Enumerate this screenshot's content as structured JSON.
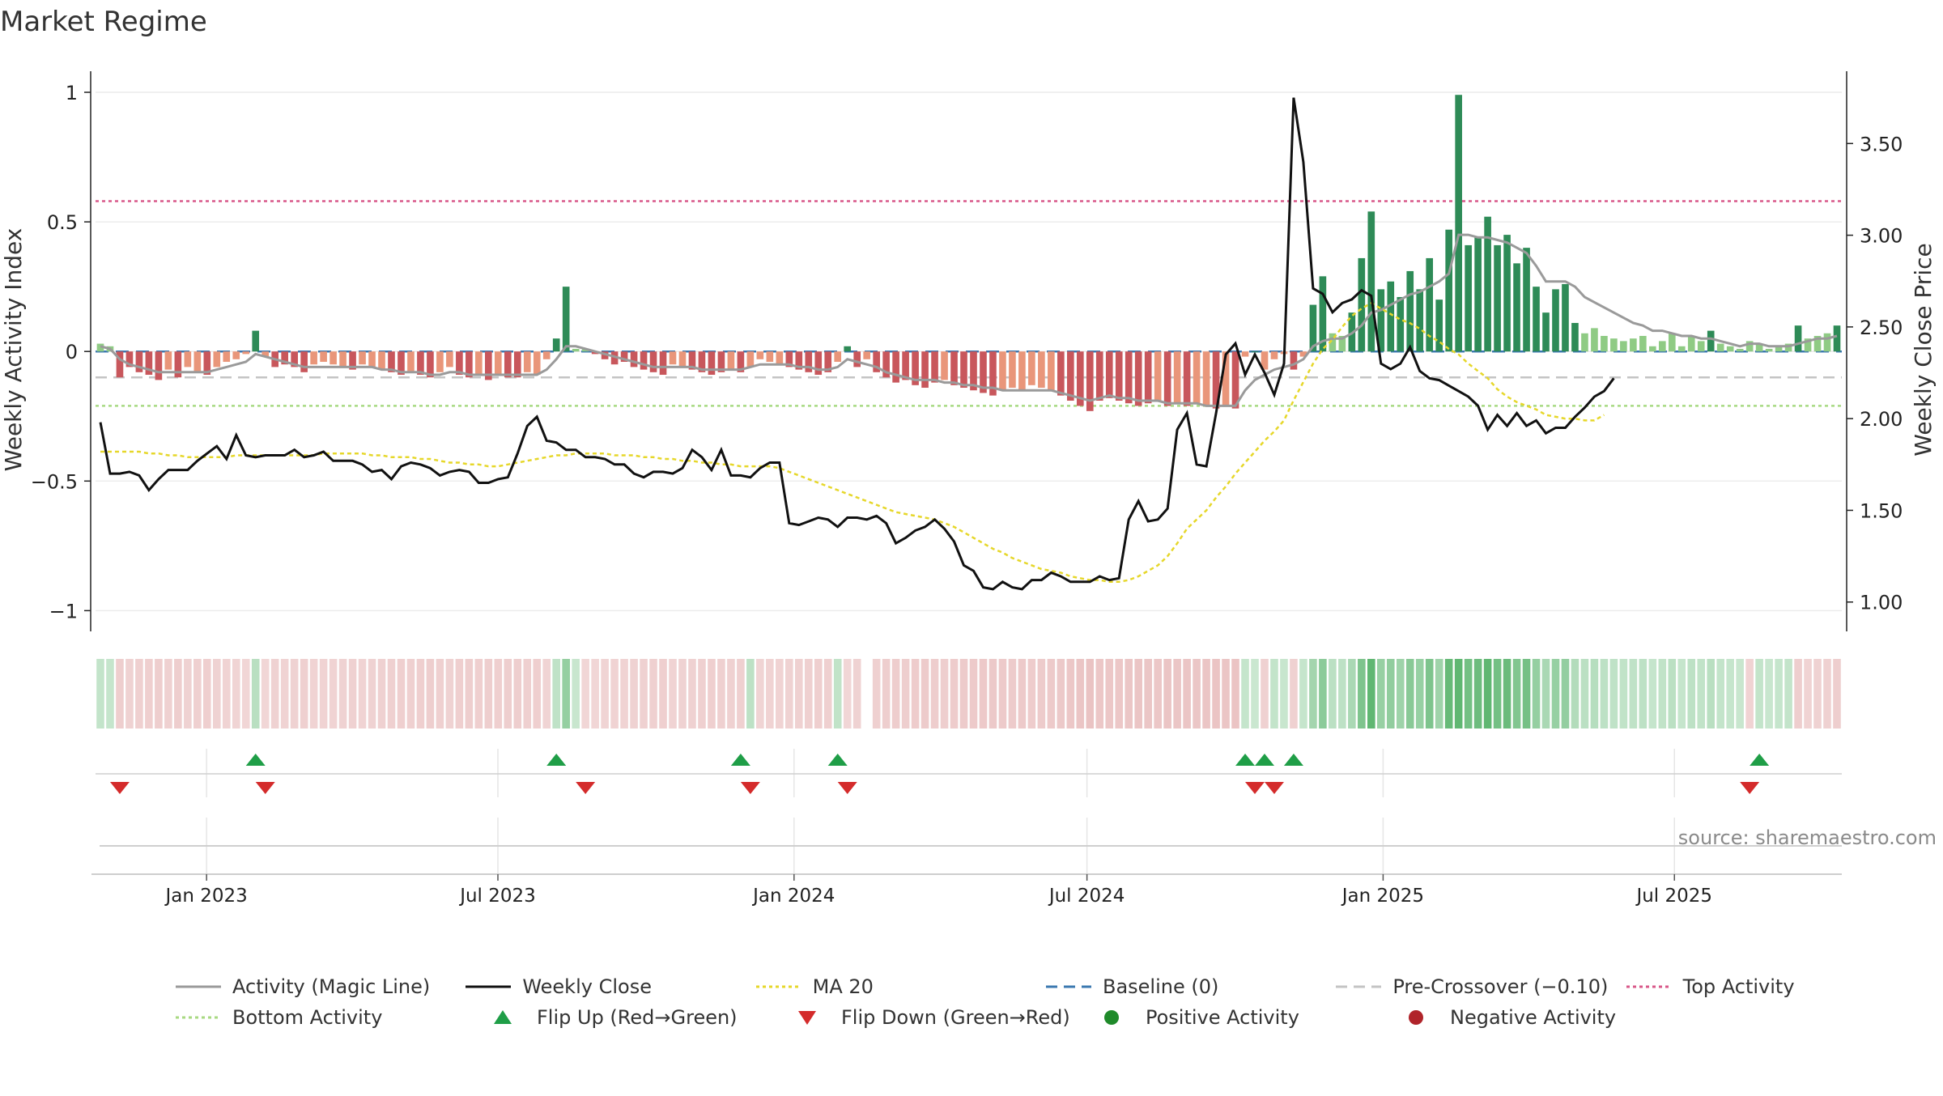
{
  "title": "Market Regime",
  "source": "source: sharemaestro.com",
  "colors": {
    "positive_dark": "#2e8b57",
    "positive_light": "#8fcb84",
    "negative_dark": "#c8575c",
    "negative_light": "#e9967a",
    "magic_line": "#9a9a9a",
    "close": "#111111",
    "ma20": "#e6d72a",
    "baseline": "#3b78b0",
    "pre_crossover": "#c4c4c4",
    "top_activity": "#d9588a",
    "bottom_activity": "#a8d982",
    "flip_up": "#1f9e47",
    "flip_down": "#d42b2b",
    "positive_dot": "#1f8a2a",
    "negative_dot": "#b0242a"
  },
  "legend": [
    {
      "label": "Activity (Magic Line)",
      "icon": "line-solid-gray"
    },
    {
      "label": "Weekly Close",
      "icon": "line-solid-black"
    },
    {
      "label": "MA 20",
      "icon": "line-dotted-yellow"
    },
    {
      "label": "Baseline (0)",
      "icon": "line-dashed-blue"
    },
    {
      "label": "Pre-Crossover (−0.10)",
      "icon": "line-dashed-gray"
    },
    {
      "label": "Top Activity",
      "icon": "line-dotted-pink"
    },
    {
      "label": "Bottom Activity",
      "icon": "line-dotted-lightgreen"
    },
    {
      "label": "Flip Up (Red→Green)",
      "icon": "triangle-up-green"
    },
    {
      "label": "Flip Down (Green→Red)",
      "icon": "triangle-down-red"
    },
    {
      "label": "Positive Activity",
      "icon": "dot-green"
    },
    {
      "label": "Negative Activity",
      "icon": "dot-red"
    }
  ],
  "chart_data": {
    "type": "bar",
    "ylabel": "Weekly Activity Index",
    "ylabel_right": "Weekly Close Price",
    "ylim": [
      -1.08,
      1.05
    ],
    "ylim_right": [
      0.84,
      3.85
    ],
    "yticks": [
      1,
      0.5,
      0,
      -0.5,
      -1
    ],
    "ytick_labels": [
      "1",
      "0.5",
      "0",
      "−0.5",
      "−1"
    ],
    "yticks_right": [
      3.5,
      3.0,
      2.5,
      2.0,
      1.5,
      1.0
    ],
    "ytick_labels_right": [
      "3.50",
      "3.00",
      "2.50",
      "2.00",
      "1.50",
      "1.00"
    ],
    "x_start": "2022-10-24",
    "x_end": "2025-10-13",
    "xticks": [
      "2023-01-01",
      "2023-07-01",
      "2024-01-01",
      "2024-07-01",
      "2025-01-01",
      "2025-07-01"
    ],
    "xtick_labels": [
      "Jan 2023",
      "Jul 2023",
      "Jan 2024",
      "Jul 2024",
      "Jan 2025",
      "Jul 2025"
    ],
    "baseline": 0,
    "pre_crossover": -0.1,
    "top_activity": 0.58,
    "bottom_activity": -0.21,
    "grid": true,
    "legend_position": "bottom",
    "activity": [
      0.03,
      0.02,
      -0.1,
      -0.06,
      -0.08,
      -0.09,
      -0.11,
      -0.07,
      -0.1,
      -0.06,
      -0.08,
      -0.09,
      -0.06,
      -0.04,
      -0.03,
      -0.01,
      0.08,
      -0.02,
      -0.06,
      -0.05,
      -0.06,
      -0.08,
      -0.05,
      -0.04,
      -0.05,
      -0.06,
      -0.07,
      -0.05,
      -0.06,
      -0.07,
      -0.08,
      -0.09,
      -0.08,
      -0.09,
      -0.1,
      -0.08,
      -0.06,
      -0.09,
      -0.1,
      -0.09,
      -0.11,
      -0.09,
      -0.1,
      -0.1,
      -0.08,
      -0.09,
      -0.03,
      0.05,
      0.25,
      0.01,
      0.01,
      -0.01,
      -0.03,
      -0.05,
      -0.04,
      -0.06,
      -0.07,
      -0.08,
      -0.09,
      -0.05,
      -0.06,
      -0.07,
      -0.08,
      -0.09,
      -0.08,
      -0.07,
      -0.08,
      -0.06,
      -0.03,
      -0.04,
      -0.05,
      -0.06,
      -0.07,
      -0.08,
      -0.09,
      -0.08,
      -0.04,
      0.02,
      -0.06,
      -0.03,
      -0.08,
      -0.1,
      -0.12,
      -0.11,
      -0.13,
      -0.14,
      -0.12,
      -0.11,
      -0.13,
      -0.14,
      -0.15,
      -0.16,
      -0.17,
      -0.15,
      -0.14,
      -0.15,
      -0.13,
      -0.14,
      -0.15,
      -0.17,
      -0.19,
      -0.21,
      -0.23,
      -0.19,
      -0.18,
      -0.19,
      -0.2,
      -0.21,
      -0.2,
      -0.19,
      -0.21,
      -0.2,
      -0.21,
      -0.2,
      -0.21,
      -0.22,
      -0.21,
      -0.22,
      -0.02,
      0.0,
      -0.07,
      -0.03,
      -0.01,
      -0.07,
      -0.02,
      0.18,
      0.29,
      0.07,
      0.06,
      0.15,
      0.36,
      0.54,
      0.24,
      0.27,
      0.21,
      0.31,
      0.24,
      0.36,
      0.2,
      0.47,
      0.99,
      0.41,
      0.44,
      0.52,
      0.41,
      0.45,
      0.34,
      0.4,
      0.25,
      0.15,
      0.24,
      0.26,
      0.11,
      0.07,
      0.09,
      0.06,
      0.05,
      0.04,
      0.05,
      0.06,
      0.02,
      0.04,
      0.07,
      0.02,
      0.06,
      0.04,
      0.08,
      0.03,
      0.02,
      0.01,
      0.04,
      0.03,
      0.01,
      0.02,
      0.03,
      0.1,
      0.05,
      0.06,
      0.07,
      0.1
    ],
    "magic_line": [
      0.02,
      0.01,
      -0.03,
      -0.05,
      -0.06,
      -0.07,
      -0.08,
      -0.08,
      -0.08,
      -0.08,
      -0.08,
      -0.08,
      -0.07,
      -0.06,
      -0.05,
      -0.04,
      -0.01,
      -0.02,
      -0.03,
      -0.04,
      -0.05,
      -0.06,
      -0.06,
      -0.06,
      -0.06,
      -0.06,
      -0.06,
      -0.06,
      -0.06,
      -0.07,
      -0.07,
      -0.08,
      -0.08,
      -0.08,
      -0.09,
      -0.09,
      -0.08,
      -0.08,
      -0.09,
      -0.09,
      -0.09,
      -0.09,
      -0.09,
      -0.09,
      -0.09,
      -0.09,
      -0.07,
      -0.03,
      0.02,
      0.02,
      0.01,
      0.0,
      -0.01,
      -0.02,
      -0.03,
      -0.04,
      -0.05,
      -0.06,
      -0.06,
      -0.06,
      -0.06,
      -0.06,
      -0.07,
      -0.07,
      -0.07,
      -0.07,
      -0.07,
      -0.06,
      -0.05,
      -0.05,
      -0.05,
      -0.05,
      -0.06,
      -0.06,
      -0.07,
      -0.07,
      -0.06,
      -0.03,
      -0.04,
      -0.05,
      -0.06,
      -0.08,
      -0.09,
      -0.1,
      -0.11,
      -0.11,
      -0.11,
      -0.12,
      -0.12,
      -0.13,
      -0.13,
      -0.14,
      -0.14,
      -0.15,
      -0.15,
      -0.15,
      -0.15,
      -0.15,
      -0.15,
      -0.16,
      -0.17,
      -0.18,
      -0.19,
      -0.18,
      -0.17,
      -0.18,
      -0.18,
      -0.19,
      -0.19,
      -0.19,
      -0.2,
      -0.2,
      -0.2,
      -0.2,
      -0.21,
      -0.21,
      -0.21,
      -0.21,
      -0.15,
      -0.11,
      -0.09,
      -0.07,
      -0.06,
      -0.05,
      -0.03,
      0.02,
      0.04,
      0.05,
      0.05,
      0.07,
      0.1,
      0.15,
      0.16,
      0.18,
      0.2,
      0.22,
      0.23,
      0.25,
      0.27,
      0.3,
      0.45,
      0.45,
      0.44,
      0.44,
      0.43,
      0.42,
      0.4,
      0.38,
      0.33,
      0.27,
      0.27,
      0.27,
      0.25,
      0.21,
      0.19,
      0.17,
      0.15,
      0.13,
      0.11,
      0.1,
      0.08,
      0.08,
      0.07,
      0.06,
      0.06,
      0.05,
      0.05,
      0.04,
      0.03,
      0.02,
      0.03,
      0.03,
      0.02,
      0.02,
      0.02,
      0.03,
      0.04,
      0.05,
      0.05,
      0.06
    ],
    "weekly_close": [
      1.98,
      1.7,
      1.7,
      1.71,
      1.69,
      1.61,
      1.67,
      1.72,
      1.72,
      1.72,
      1.77,
      1.81,
      1.85,
      1.78,
      1.91,
      1.8,
      1.79,
      1.8,
      1.8,
      1.8,
      1.83,
      1.79,
      1.8,
      1.82,
      1.77,
      1.77,
      1.77,
      1.75,
      1.71,
      1.72,
      1.67,
      1.74,
      1.76,
      1.75,
      1.73,
      1.69,
      1.71,
      1.72,
      1.71,
      1.65,
      1.65,
      1.67,
      1.68,
      1.81,
      1.96,
      2.01,
      1.88,
      1.87,
      1.83,
      1.83,
      1.79,
      1.79,
      1.78,
      1.75,
      1.75,
      1.7,
      1.68,
      1.71,
      1.71,
      1.7,
      1.73,
      1.83,
      1.79,
      1.72,
      1.83,
      1.69,
      1.69,
      1.68,
      1.73,
      1.76,
      1.76,
      1.43,
      1.42,
      1.44,
      1.46,
      1.45,
      1.41,
      1.46,
      1.46,
      1.45,
      1.47,
      1.43,
      1.32,
      1.35,
      1.39,
      1.41,
      1.45,
      1.4,
      1.33,
      1.2,
      1.17,
      1.08,
      1.07,
      1.11,
      1.08,
      1.07,
      1.12,
      1.12,
      1.16,
      1.14,
      1.11,
      1.11,
      1.11,
      1.14,
      1.12,
      1.13,
      1.45,
      1.55,
      1.44,
      1.45,
      1.51,
      1.94,
      2.03,
      1.75,
      1.74,
      2.03,
      2.35,
      2.41,
      2.24,
      2.35,
      2.25,
      2.13,
      2.3,
      3.75,
      3.4,
      2.71,
      2.68,
      2.58,
      2.63,
      2.65,
      2.7,
      2.67,
      2.3,
      2.27,
      2.3,
      2.39,
      2.26,
      2.22,
      2.21,
      2.18,
      2.15,
      2.12,
      2.07,
      1.94,
      2.02,
      1.96,
      2.03,
      1.96,
      1.99,
      1.92,
      1.95,
      1.95,
      2.01,
      2.06,
      2.12,
      2.15,
      2.22
    ],
    "ma20": [
      1.82,
      1.82,
      1.82,
      1.82,
      1.82,
      1.81,
      1.81,
      1.8,
      1.8,
      1.79,
      1.79,
      1.79,
      1.79,
      1.79,
      1.8,
      1.8,
      1.8,
      1.8,
      1.8,
      1.8,
      1.8,
      1.8,
      1.8,
      1.81,
      1.81,
      1.81,
      1.81,
      1.81,
      1.8,
      1.8,
      1.79,
      1.79,
      1.79,
      1.78,
      1.78,
      1.77,
      1.76,
      1.76,
      1.75,
      1.75,
      1.74,
      1.74,
      1.75,
      1.76,
      1.77,
      1.78,
      1.79,
      1.8,
      1.8,
      1.81,
      1.81,
      1.81,
      1.81,
      1.8,
      1.8,
      1.8,
      1.79,
      1.79,
      1.78,
      1.78,
      1.77,
      1.77,
      1.76,
      1.76,
      1.75,
      1.75,
      1.74,
      1.74,
      1.74,
      1.74,
      1.73,
      1.71,
      1.69,
      1.67,
      1.65,
      1.63,
      1.61,
      1.59,
      1.57,
      1.55,
      1.53,
      1.51,
      1.49,
      1.48,
      1.47,
      1.46,
      1.45,
      1.43,
      1.41,
      1.38,
      1.35,
      1.32,
      1.29,
      1.27,
      1.24,
      1.22,
      1.2,
      1.18,
      1.17,
      1.16,
      1.14,
      1.13,
      1.12,
      1.12,
      1.11,
      1.11,
      1.12,
      1.14,
      1.17,
      1.2,
      1.25,
      1.32,
      1.4,
      1.45,
      1.5,
      1.57,
      1.63,
      1.7,
      1.76,
      1.82,
      1.88,
      1.93,
      1.99,
      2.1,
      2.2,
      2.3,
      2.38,
      2.43,
      2.5,
      2.56,
      2.6,
      2.63,
      2.6,
      2.57,
      2.54,
      2.52,
      2.49,
      2.45,
      2.42,
      2.38,
      2.35,
      2.3,
      2.26,
      2.22,
      2.16,
      2.12,
      2.09,
      2.07,
      2.05,
      2.02,
      2.01,
      2.0,
      2.0,
      1.99,
      1.99,
      2.02
    ],
    "regime_strip": [
      {
        "start": 0,
        "end": 2,
        "sign": "pos"
      },
      {
        "start": 2,
        "end": 16,
        "sign": "neg"
      },
      {
        "start": 16,
        "end": 17,
        "sign": "pos"
      },
      {
        "start": 17,
        "end": 47,
        "sign": "neg"
      },
      {
        "start": 47,
        "end": 50,
        "sign": "pos"
      },
      {
        "start": 50,
        "end": 67,
        "sign": "neg"
      },
      {
        "start": 67,
        "end": 68,
        "sign": "pos"
      },
      {
        "start": 68,
        "end": 76,
        "sign": "neg"
      },
      {
        "start": 76,
        "end": 77,
        "sign": "pos"
      },
      {
        "start": 77,
        "end": 79,
        "sign": "neg"
      },
      {
        "start": 79,
        "end": 118,
        "sign": "neg"
      },
      {
        "start": 118,
        "end": 120,
        "sign": "pos"
      },
      {
        "start": 120,
        "end": 121,
        "sign": "neg"
      },
      {
        "start": 121,
        "end": 123,
        "sign": "pos"
      },
      {
        "start": 123,
        "end": 124,
        "sign": "neg"
      },
      {
        "start": 124,
        "end": 170,
        "sign": "pos"
      },
      {
        "start": 170,
        "end": 171,
        "sign": "neg"
      },
      {
        "start": 171,
        "end": 175,
        "sign": "pos"
      }
    ],
    "strip_gap_index": 79,
    "flip_up_idx": [
      16,
      47,
      66,
      76,
      118,
      120,
      123,
      171
    ],
    "flip_down_idx": [
      2,
      17,
      50,
      67,
      77,
      119,
      121,
      170
    ]
  }
}
